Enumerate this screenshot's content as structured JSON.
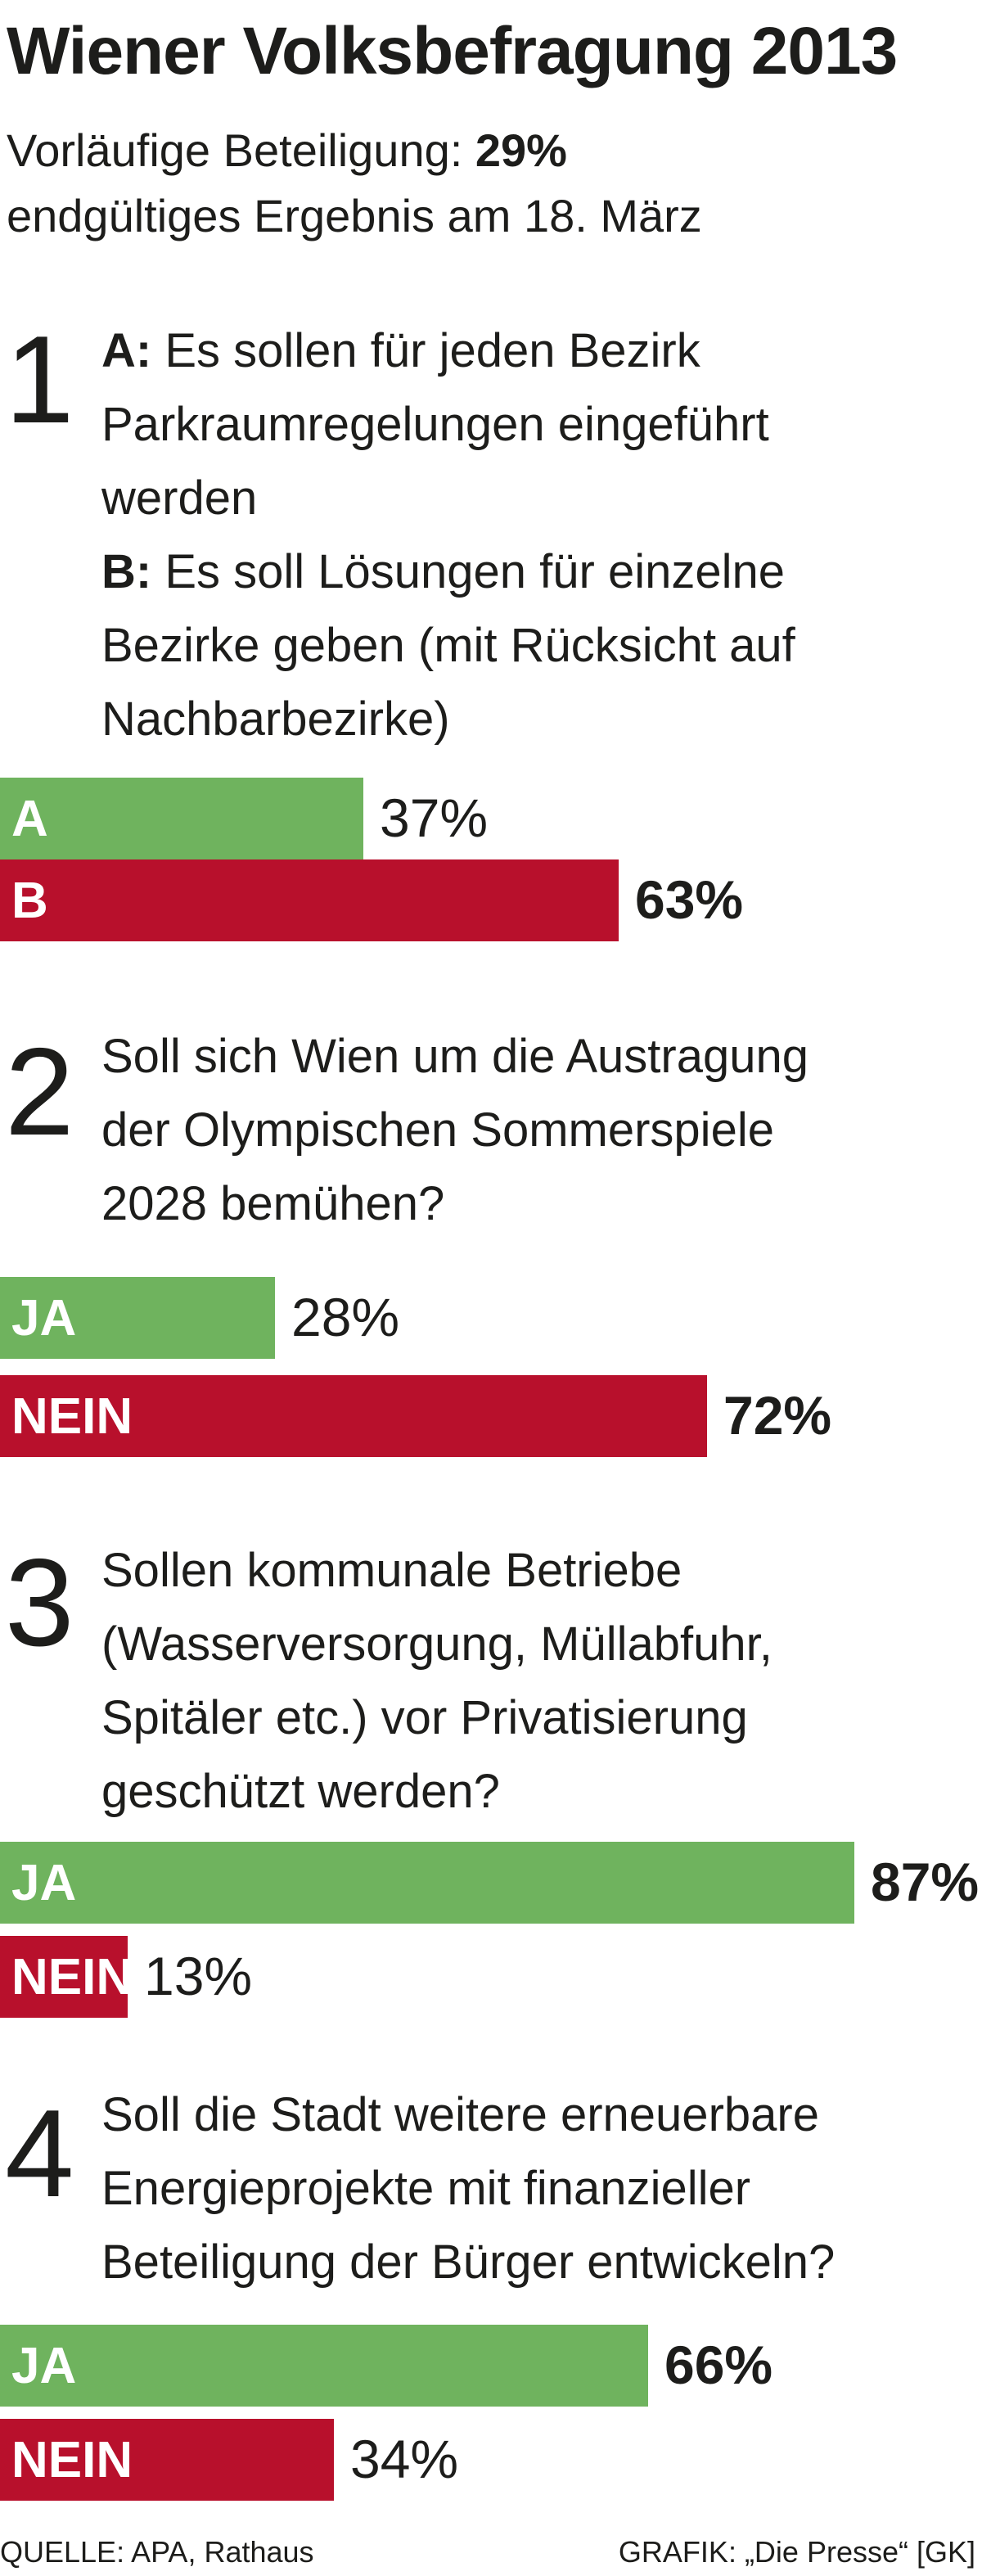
{
  "title": "Wiener Volksbefragung 2013",
  "subtitle": {
    "line1_prefix": "Vorläufige Beteiligung: ",
    "line1_value": "29%",
    "line2": "endgültiges Ergebnis am 18. März"
  },
  "colors": {
    "green": "#6fb35e",
    "red": "#b8102c",
    "text": "#1d1d1b"
  },
  "chart_data": {
    "type": "bar",
    "title": "Wiener Volksbefragung 2013",
    "xlim": [
      0,
      100
    ],
    "unit": "%",
    "questions": [
      {
        "number": "1",
        "lines": [
          {
            "prefix": "A:",
            "text": " Es sollen für jeden Bezirk"
          },
          {
            "prefix": "",
            "text": "Parkraumregelungen eingeführt"
          },
          {
            "prefix": "",
            "text": "werden"
          },
          {
            "prefix": "B:",
            "text": " Es soll Lösungen für einzelne"
          },
          {
            "prefix": "",
            "text": "Bezirke geben (mit Rücksicht auf"
          },
          {
            "prefix": "",
            "text": "Nachbarbezirke)"
          }
        ],
        "categories": [
          "A",
          "B"
        ],
        "values": [
          37,
          63
        ],
        "value_labels": [
          "37%",
          "63%"
        ],
        "winner": "B"
      },
      {
        "number": "2",
        "lines": [
          {
            "prefix": "",
            "text": "Soll sich Wien um die Austragung"
          },
          {
            "prefix": "",
            "text": "der Olympischen Sommerspiele"
          },
          {
            "prefix": "",
            "text": "2028 bemühen?"
          }
        ],
        "categories": [
          "JA",
          "NEIN"
        ],
        "values": [
          28,
          72
        ],
        "value_labels": [
          "28%",
          "72%"
        ],
        "winner": "NEIN"
      },
      {
        "number": "3",
        "lines": [
          {
            "prefix": "",
            "text": "Sollen kommunale Betriebe"
          },
          {
            "prefix": "",
            "text": "(Wasserversorgung, Müllabfuhr,"
          },
          {
            "prefix": "",
            "text": "Spitäler etc.) vor Privatisierung"
          },
          {
            "prefix": "",
            "text": "geschützt werden?"
          }
        ],
        "categories": [
          "JA",
          "NEIN"
        ],
        "values": [
          87,
          13
        ],
        "value_labels": [
          "87%",
          "13%"
        ],
        "winner": "JA"
      },
      {
        "number": "4",
        "lines": [
          {
            "prefix": "",
            "text": "Soll die Stadt weitere erneuerbare"
          },
          {
            "prefix": "",
            "text": "Energieprojekte mit finanzieller"
          },
          {
            "prefix": "",
            "text": "Beteiligung der Bürger entwickeln?"
          }
        ],
        "categories": [
          "JA",
          "NEIN"
        ],
        "values": [
          66,
          34
        ],
        "value_labels": [
          "66%",
          "34%"
        ],
        "winner": "JA"
      }
    ]
  },
  "footer": {
    "source": "QUELLE: APA, Rathaus",
    "credit": "GRAFIK: „Die Presse“ [GK]"
  }
}
